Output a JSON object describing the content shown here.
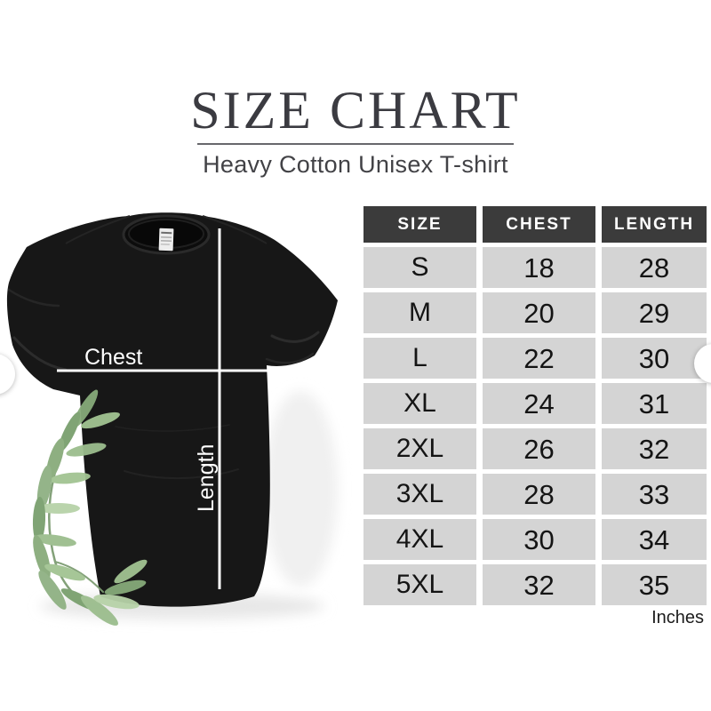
{
  "header": {
    "title": "SIZE CHART",
    "subtitle": "Heavy Cotton Unisex T-shirt"
  },
  "figure": {
    "chest_label": "Chest",
    "length_label": "Length"
  },
  "size_table": {
    "columns": [
      "SIZE",
      "CHEST",
      "LENGTH"
    ],
    "rows": [
      {
        "size": "S",
        "chest": "18",
        "length": "28"
      },
      {
        "size": "M",
        "chest": "20",
        "length": "29"
      },
      {
        "size": "L",
        "chest": "22",
        "length": "30"
      },
      {
        "size": "XL",
        "chest": "24",
        "length": "31"
      },
      {
        "size": "2XL",
        "chest": "26",
        "length": "32"
      },
      {
        "size": "3XL",
        "chest": "28",
        "length": "33"
      },
      {
        "size": "4XL",
        "chest": "30",
        "length": "34"
      },
      {
        "size": "5XL",
        "chest": "32",
        "length": "35"
      }
    ],
    "unit_label": "Inches",
    "colors": {
      "header_bg": "#3b3b3b",
      "header_text": "#ffffff",
      "row_bg": "#d4d4d4",
      "row_text": "#141414"
    }
  },
  "carousel": {
    "prev_icon": "‹",
    "next_icon": "›"
  },
  "colors": {
    "shirt": "#171717",
    "leaf_green": "#8fb183",
    "measure_line": "#ffffff",
    "title_text": "#3b3b41"
  }
}
